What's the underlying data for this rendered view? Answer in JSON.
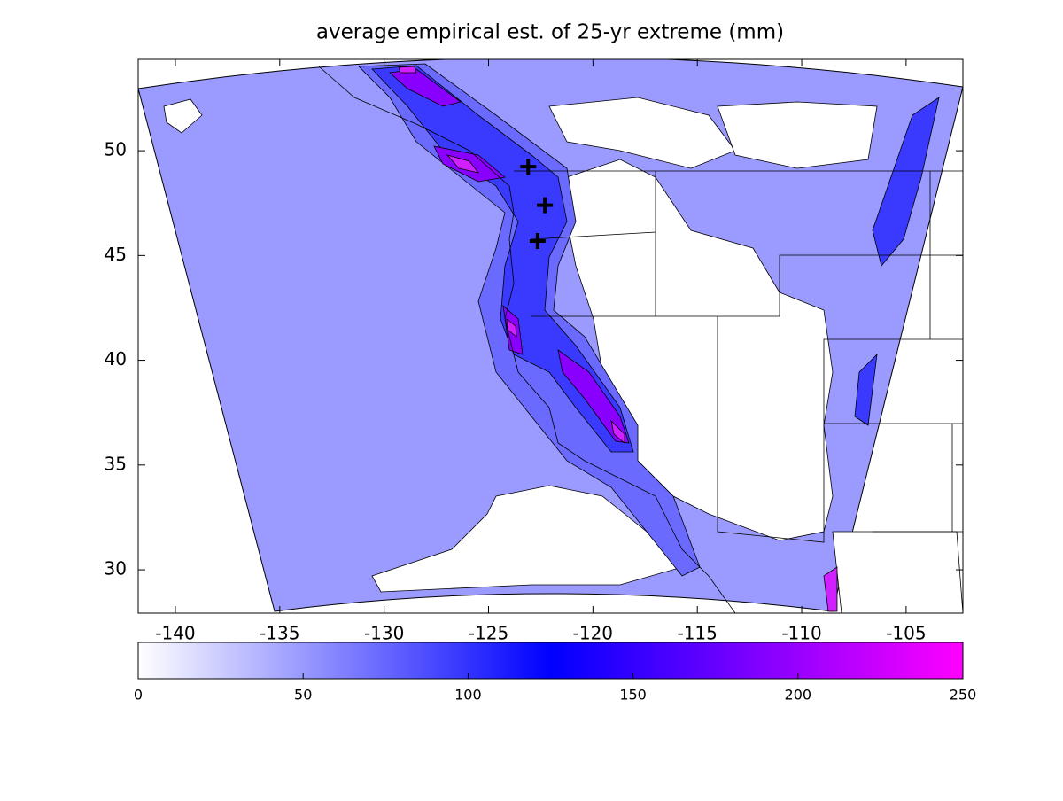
{
  "title": "average empirical est. of 25-yr extreme (mm)",
  "map": {
    "xlim": [
      -141.78,
      -102.28
    ],
    "ylim": [
      27.93,
      54.36
    ],
    "xticks": [
      -140,
      -135,
      -130,
      -125,
      -120,
      -115,
      -110,
      -105
    ],
    "yticks": [
      30,
      35,
      40,
      45,
      50
    ],
    "markers": [
      {
        "lon": -123.1,
        "lat": 49.24
      },
      {
        "lon": -122.3,
        "lat": 47.4
      },
      {
        "lon": -122.65,
        "lat": 45.69
      }
    ]
  },
  "colorbar": {
    "lim": [
      0,
      250
    ],
    "ticks": [
      0,
      50,
      100,
      150,
      200,
      250
    ],
    "colormap": [
      {
        "value": 0,
        "color": "#ffffff"
      },
      {
        "value": 125,
        "color": "#0000ff"
      },
      {
        "value": 250,
        "color": "#ff00ff"
      }
    ]
  }
}
